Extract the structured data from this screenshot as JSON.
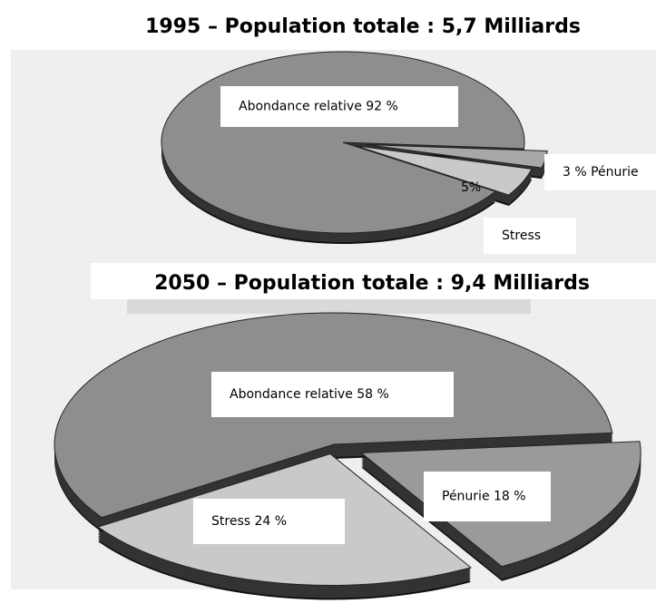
{
  "chart_data": [
    {
      "type": "pie",
      "title": "1995 – Population totale : 5,7 Milliards",
      "values": [
        92,
        5,
        3
      ],
      "value_labels": [
        "Abondance relative 92 %",
        "5%",
        "3 %  Pénurie"
      ],
      "annotations": [
        "Stress"
      ],
      "colors": [
        "#8e8e8e",
        "#c9c9c9",
        "#a8a8a8"
      ]
    },
    {
      "type": "pie",
      "title": "2050 – Population totale : 9,4 Milliards",
      "values": [
        58,
        24,
        18
      ],
      "value_labels": [
        "Abondance relative 58 %",
        "Stress 24 %",
        "Pénurie 18 %"
      ],
      "colors": [
        "#8e8e8e",
        "#c9c9c9",
        "#9a9a9a"
      ]
    }
  ]
}
